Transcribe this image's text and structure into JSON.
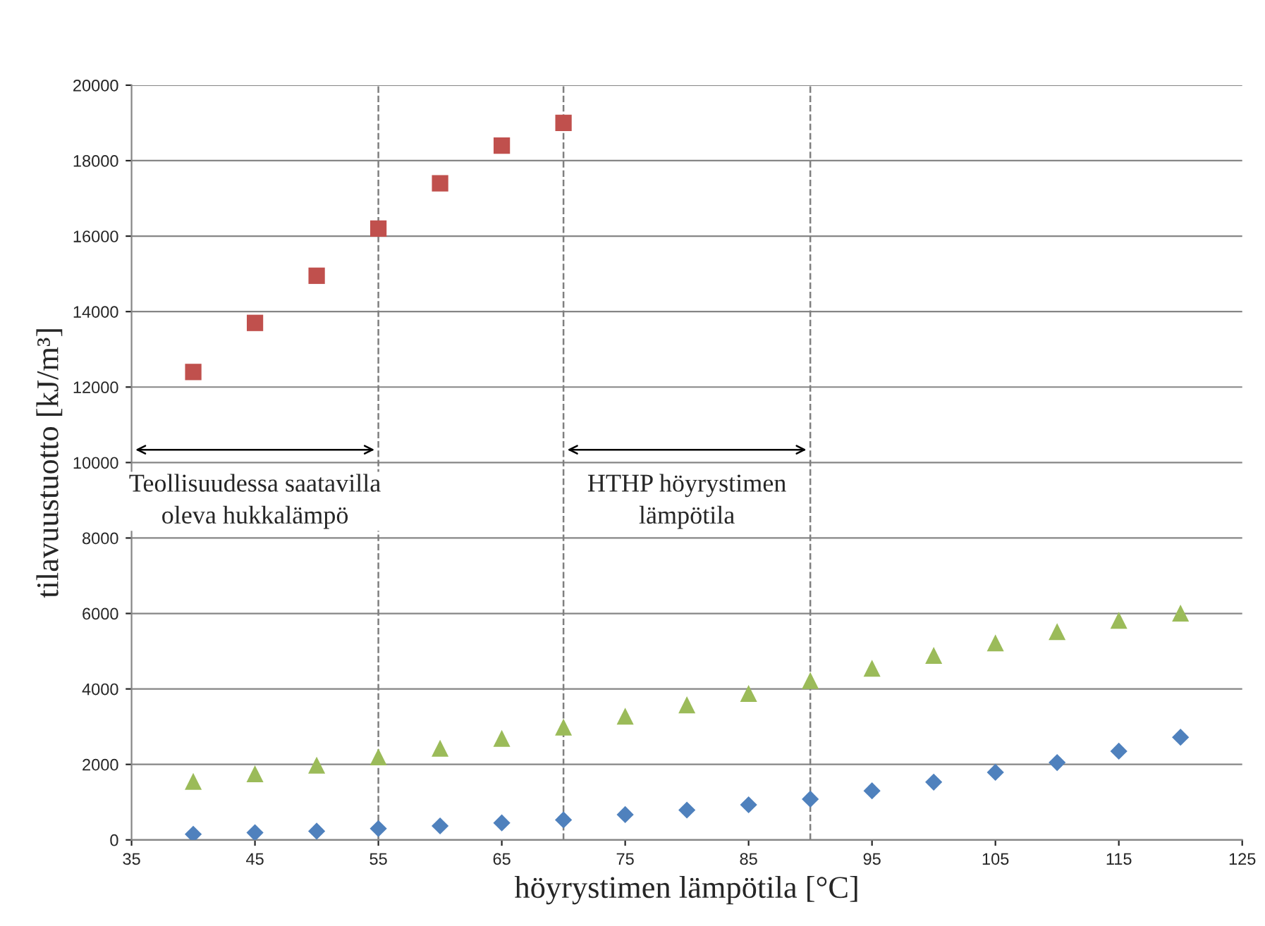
{
  "chart_data": {
    "type": "scatter",
    "xlabel": "höyrystimen lämpötila [°C]",
    "ylabel": "tilavuustuotto [kJ/m³]",
    "xlim": [
      35,
      125
    ],
    "xticks": [
      35,
      45,
      55,
      65,
      75,
      85,
      95,
      105,
      115,
      125
    ],
    "ylim": [
      0,
      20000
    ],
    "yticks": [
      0,
      2000,
      4000,
      6000,
      8000,
      10000,
      12000,
      14000,
      16000,
      18000,
      20000
    ],
    "grid": "y",
    "legend": false,
    "series": [
      {
        "color": "#c0504d",
        "marker": "square",
        "x": [
          40,
          45,
          50,
          55,
          60,
          65,
          70
        ],
        "values": [
          12400,
          13700,
          14950,
          16200,
          17400,
          18400,
          19000
        ]
      },
      {
        "color": "#9bbb59",
        "marker": "triangle",
        "x": [
          40,
          45,
          50,
          55,
          60,
          65,
          70,
          75,
          80,
          85,
          90,
          95,
          100,
          105,
          110,
          115,
          120
        ],
        "values": [
          1550,
          1750,
          1980,
          2200,
          2430,
          2690,
          2990,
          3280,
          3580,
          3880,
          4220,
          4550,
          4890,
          5220,
          5520,
          5820,
          6010
        ]
      },
      {
        "color": "#4f81bd",
        "marker": "diamond",
        "x": [
          40,
          45,
          50,
          55,
          60,
          65,
          70,
          75,
          80,
          85,
          90,
          95,
          100,
          105,
          110,
          115,
          120
        ],
        "values": [
          150,
          190,
          230,
          300,
          370,
          450,
          530,
          670,
          790,
          930,
          1080,
          1300,
          1530,
          1790,
          2050,
          2350,
          2720
        ]
      }
    ],
    "ref_lines": [
      {
        "axis": "x",
        "value": 55,
        "color": "#7f7f7f",
        "line_style": "dashed"
      },
      {
        "axis": "x",
        "value": 70,
        "color": "#7f7f7f",
        "line_style": "dashed"
      },
      {
        "axis": "x",
        "value": 90,
        "color": "#7f7f7f",
        "line_style": "dashed"
      }
    ],
    "annotations": [
      "Teollisuudessa saatavilla\noleva hukkalämpö",
      "HTHP höyrystimen\nlämpötila"
    ]
  }
}
